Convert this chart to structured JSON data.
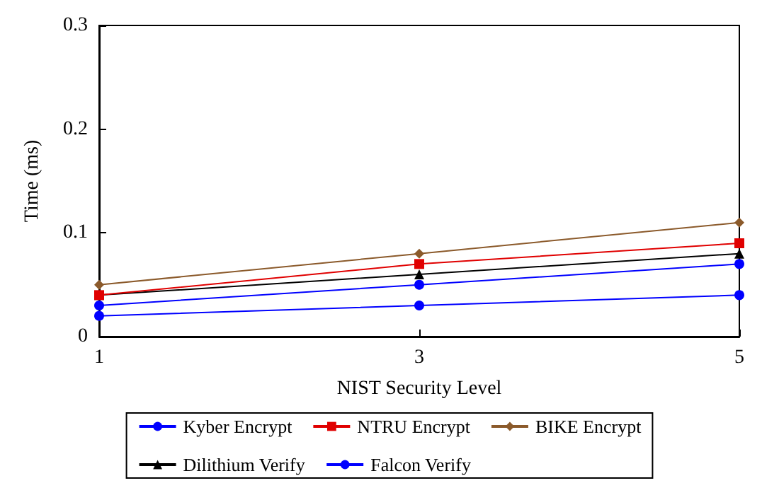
{
  "chart_data": {
    "type": "line",
    "xlabel": "NIST Security Level",
    "ylabel": "Time (ms)",
    "x": [
      1,
      3,
      5
    ],
    "xlim": [
      1,
      5
    ],
    "xticks": [
      1,
      3,
      5
    ],
    "ylim": [
      0,
      0.3
    ],
    "yticks": [
      0,
      0.1,
      0.2,
      0.3
    ],
    "grid": false,
    "legend": "bottom",
    "line_style": "solid",
    "series": [
      {
        "name": "Kyber Encrypt",
        "color": "#0000ff",
        "marker": "circle",
        "values": [
          0.03,
          0.05,
          0.07
        ]
      },
      {
        "name": "NTRU Encrypt",
        "color": "#e00000",
        "marker": "square",
        "values": [
          0.04,
          0.07,
          0.09
        ]
      },
      {
        "name": "BIKE Encrypt",
        "color": "#8b5a2b",
        "marker": "diamond",
        "values": [
          0.05,
          0.08,
          0.11
        ]
      },
      {
        "name": "Dilithium Verify",
        "color": "#000000",
        "marker": "triangle",
        "values": [
          0.04,
          0.06,
          0.08
        ]
      },
      {
        "name": "Falcon Verify",
        "color": "#0000ff",
        "marker": "circle",
        "values": [
          0.02,
          0.03,
          0.04
        ]
      }
    ]
  }
}
